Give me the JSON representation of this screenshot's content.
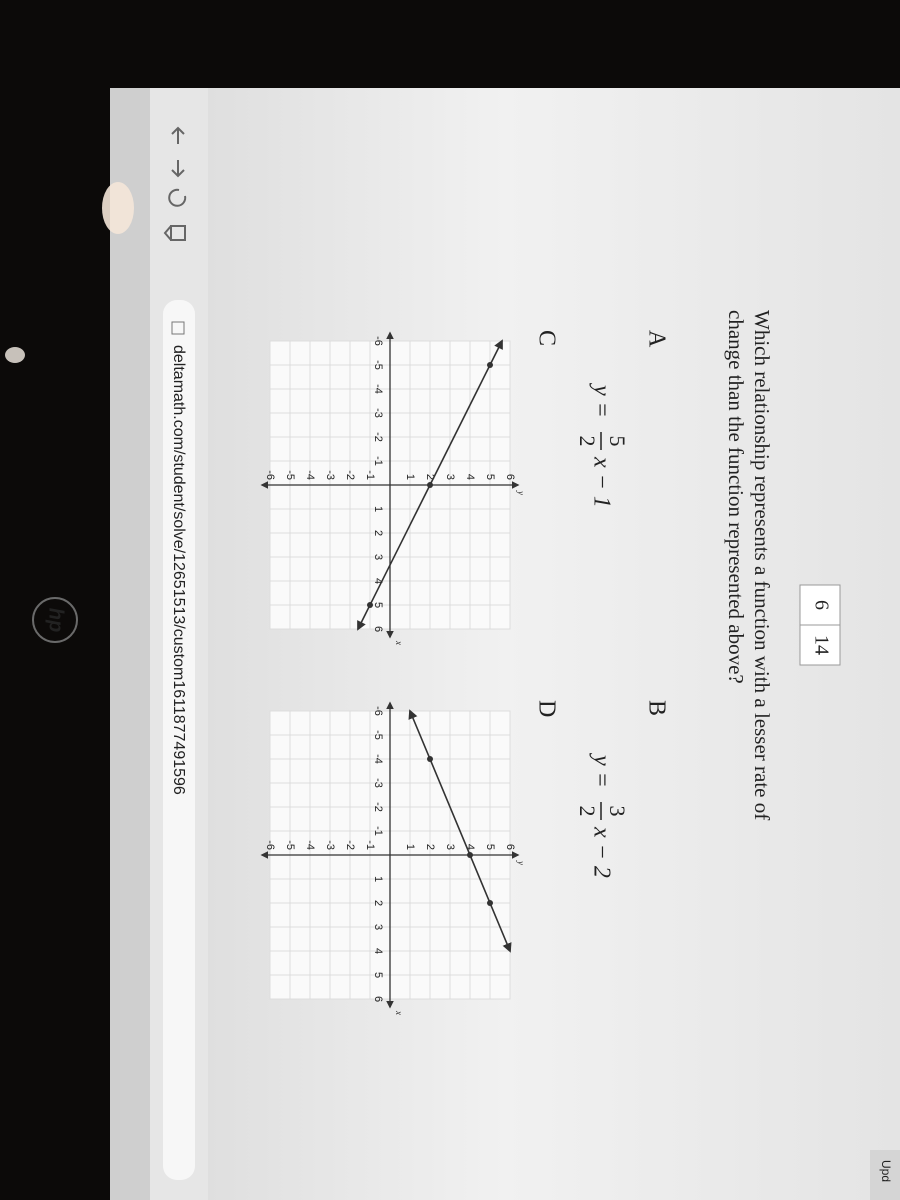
{
  "browser": {
    "url": "deltamath.com/student/solve/12651513/custom1611877491596",
    "update": "Upd"
  },
  "counter": {
    "current": 6,
    "total": 14
  },
  "question": {
    "lines": [
      "Which relationship represents a function with a lesser rate of",
      "change than the function represented above?"
    ]
  },
  "options": [
    {
      "label": "A",
      "equation": {
        "lhs": "y =",
        "numerator": "5",
        "denominator": "2",
        "rhs": "x − 1"
      }
    },
    {
      "label": "B",
      "equation": {
        "lhs": "y =",
        "numerator": "3",
        "denominator": "2",
        "rhs": "x − 2"
      }
    },
    {
      "label": "C",
      "graph": {
        "xlim": [
          -6,
          6
        ],
        "ylim": [
          -6,
          6
        ],
        "xticks": [
          -6,
          -5,
          -4,
          -3,
          -2,
          -1,
          1,
          2,
          3,
          4,
          5,
          6
        ],
        "yticks": [
          -6,
          -5,
          -4,
          -3,
          -2,
          -1,
          1,
          2,
          3,
          4,
          5,
          6
        ],
        "axis_labels": {
          "x": "x",
          "y": "y"
        },
        "points": [
          [
            -5,
            5
          ],
          [
            0,
            2
          ],
          [
            5,
            -1
          ]
        ]
      }
    },
    {
      "label": "D",
      "graph": {
        "xlim": [
          -6,
          6
        ],
        "ylim": [
          -6,
          6
        ],
        "xticks": [
          -6,
          -5,
          -4,
          -3,
          -2,
          -1,
          1,
          2,
          3,
          4,
          5,
          6
        ],
        "yticks": [
          -6,
          -5,
          -4,
          -3,
          -2,
          -1,
          1,
          2,
          3,
          4,
          5,
          6
        ],
        "axis_labels": {
          "x": "x",
          "y": "y"
        },
        "points": [
          [
            -4,
            2
          ],
          [
            0,
            4
          ],
          [
            2,
            5
          ]
        ]
      }
    }
  ],
  "logo": "hp"
}
